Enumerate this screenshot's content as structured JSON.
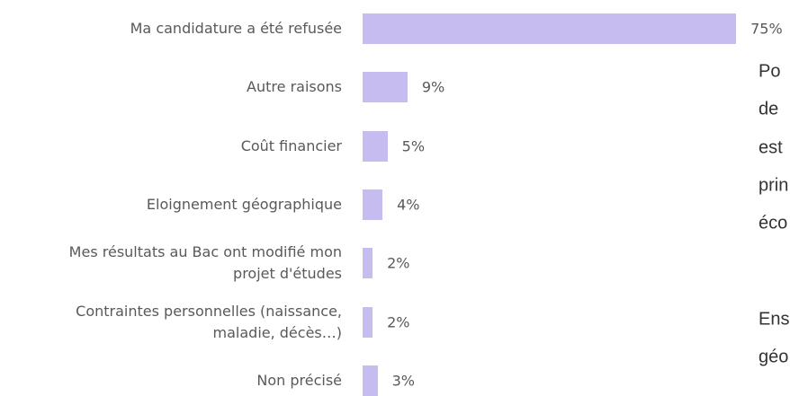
{
  "chart_data": {
    "type": "bar",
    "orientation": "horizontal",
    "categories": [
      "Ma candidature a été refusée",
      "Autre raisons",
      "Coût financier",
      "Eloignement géographique",
      "Mes résultats au Bac ont modifié mon\nprojet d'études",
      "Contraintes personnelles (naissance,\nmaladie, décès…)",
      "Non précisé"
    ],
    "values": [
      75,
      9,
      5,
      4,
      2,
      2,
      3
    ],
    "value_labels": [
      "75%",
      "9%",
      "5%",
      "4%",
      "2%",
      "2%",
      "3%"
    ],
    "color": "#c6bcf0"
  },
  "side_text": {
    "paragraphs": [
      [
        "Po",
        "de",
        "est",
        "prin",
        "éco"
      ],
      [
        "Ens",
        "géo"
      ]
    ]
  }
}
